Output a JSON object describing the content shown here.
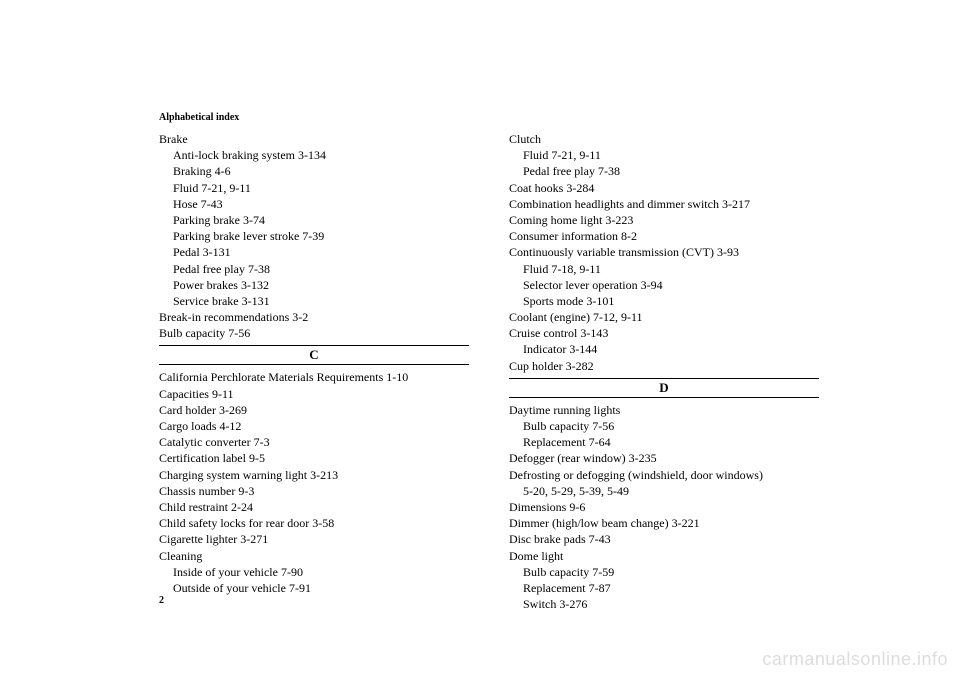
{
  "header": "Alphabetical index",
  "pageNumber": "2",
  "watermark": "carmanualsonline.info",
  "left": {
    "block1": [
      {
        "text": "Brake",
        "sub": false
      },
      {
        "text": "Anti-lock braking system  3-134",
        "sub": true
      },
      {
        "text": "Braking  4-6",
        "sub": true
      },
      {
        "text": "Fluid  7-21, 9-11",
        "sub": true
      },
      {
        "text": "Hose  7-43",
        "sub": true
      },
      {
        "text": "Parking brake  3-74",
        "sub": true
      },
      {
        "text": "Parking brake lever stroke  7-39",
        "sub": true
      },
      {
        "text": "Pedal  3-131",
        "sub": true
      },
      {
        "text": "Pedal free play  7-38",
        "sub": true
      },
      {
        "text": "Power brakes  3-132",
        "sub": true
      },
      {
        "text": "Service brake  3-131",
        "sub": true
      },
      {
        "text": "Break-in recommendations  3-2",
        "sub": false
      },
      {
        "text": "Bulb capacity  7-56",
        "sub": false
      }
    ],
    "letterC": "C",
    "block2": [
      {
        "text": "California Perchlorate Materials Requirements  1-10",
        "sub": false
      },
      {
        "text": "Capacities  9-11",
        "sub": false
      },
      {
        "text": "Card holder  3-269",
        "sub": false
      },
      {
        "text": "Cargo loads  4-12",
        "sub": false
      },
      {
        "text": "Catalytic converter  7-3",
        "sub": false
      },
      {
        "text": "Certification label  9-5",
        "sub": false
      },
      {
        "text": "Charging system warning light  3-213",
        "sub": false
      },
      {
        "text": "Chassis number  9-3",
        "sub": false
      },
      {
        "text": "Child restraint  2-24",
        "sub": false
      },
      {
        "text": "Child safety locks for rear door  3-58",
        "sub": false
      },
      {
        "text": "Cigarette lighter  3-271",
        "sub": false
      },
      {
        "text": "Cleaning",
        "sub": false
      },
      {
        "text": "Inside of your vehicle  7-90",
        "sub": true
      },
      {
        "text": "Outside of your vehicle  7-91",
        "sub": true
      }
    ]
  },
  "right": {
    "block1": [
      {
        "text": "Clutch",
        "sub": false
      },
      {
        "text": "Fluid  7-21, 9-11",
        "sub": true
      },
      {
        "text": "Pedal free play  7-38",
        "sub": true
      },
      {
        "text": "Coat hooks  3-284",
        "sub": false
      },
      {
        "text": "Combination headlights and dimmer switch  3-217",
        "sub": false
      },
      {
        "text": "Coming home light  3-223",
        "sub": false
      },
      {
        "text": "Consumer information  8-2",
        "sub": false
      },
      {
        "text": "Continuously variable transmission (CVT)  3-93",
        "sub": false
      },
      {
        "text": "Fluid  7-18, 9-11",
        "sub": true
      },
      {
        "text": "Selector lever operation  3-94",
        "sub": true
      },
      {
        "text": "Sports mode  3-101",
        "sub": true
      },
      {
        "text": "Coolant (engine)  7-12, 9-11",
        "sub": false
      },
      {
        "text": "Cruise control  3-143",
        "sub": false
      },
      {
        "text": "Indicator  3-144",
        "sub": true
      },
      {
        "text": "Cup holder  3-282",
        "sub": false
      }
    ],
    "letterD": "D",
    "block2": [
      {
        "text": "Daytime running lights",
        "sub": false
      },
      {
        "text": "Bulb capacity  7-56",
        "sub": true
      },
      {
        "text": "Replacement  7-64",
        "sub": true
      },
      {
        "text": "Defogger (rear window)  3-235",
        "sub": false
      },
      {
        "text": "Defrosting or defogging (windshield, door windows)",
        "sub": false
      },
      {
        "text": "5-20, 5-29, 5-39, 5-49",
        "sub": true
      },
      {
        "text": "Dimensions  9-6",
        "sub": false
      },
      {
        "text": "Dimmer (high/low beam change)  3-221",
        "sub": false
      },
      {
        "text": "Disc brake pads  7-43",
        "sub": false
      },
      {
        "text": "Dome light",
        "sub": false
      },
      {
        "text": "Bulb capacity  7-59",
        "sub": true
      },
      {
        "text": "Replacement  7-87",
        "sub": true
      },
      {
        "text": "Switch  3-276",
        "sub": true
      }
    ]
  }
}
